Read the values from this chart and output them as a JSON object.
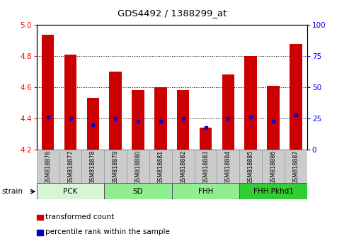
{
  "title": "GDS4492 / 1388299_at",
  "samples": [
    "GSM818876",
    "GSM818877",
    "GSM818878",
    "GSM818879",
    "GSM818880",
    "GSM818881",
    "GSM818882",
    "GSM818883",
    "GSM818884",
    "GSM818885",
    "GSM818886",
    "GSM818887"
  ],
  "red_values": [
    4.94,
    4.81,
    4.53,
    4.7,
    4.58,
    4.6,
    4.58,
    4.34,
    4.68,
    4.8,
    4.61,
    4.88
  ],
  "blue_values": [
    4.41,
    4.4,
    4.36,
    4.4,
    4.38,
    4.38,
    4.4,
    4.34,
    4.4,
    4.41,
    4.38,
    4.42
  ],
  "ymin": 4.2,
  "ymax": 5.0,
  "yticks": [
    4.2,
    4.4,
    4.6,
    4.8,
    5.0
  ],
  "y2ticks": [
    0,
    25,
    50,
    75,
    100
  ],
  "groups": [
    {
      "label": "PCK",
      "start": 0,
      "end": 2,
      "color": "#d6f5d6"
    },
    {
      "label": "SD",
      "start": 3,
      "end": 5,
      "color": "#90ee90"
    },
    {
      "label": "FHH",
      "start": 6,
      "end": 8,
      "color": "#90ee90"
    },
    {
      "label": "FHH.Pkhd1",
      "start": 9,
      "end": 11,
      "color": "#32cd32"
    }
  ],
  "bar_color": "#cc0000",
  "dot_color": "#0000cc",
  "bg_color": "#ffffff",
  "tick_bg_color": "#cccccc",
  "strain_label": "strain",
  "legend1": "transformed count",
  "legend2": "percentile rank within the sample",
  "bar_width": 0.55
}
